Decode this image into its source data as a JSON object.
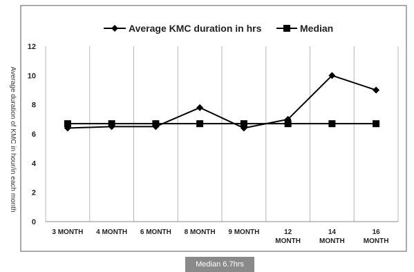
{
  "chart_data": {
    "type": "line",
    "title": "",
    "xlabel": "",
    "ylabel": "Average duration of KMC in hour/in each month",
    "categories": [
      "3 MONTH",
      "4 MONTH",
      "6 MONTH",
      "8 MONTH",
      "9 MONTH",
      "12 MONTH",
      "14 MONTH",
      "16 MONTH"
    ],
    "ylim": [
      0,
      12
    ],
    "yticks": [
      0,
      2,
      4,
      6,
      8,
      10,
      12
    ],
    "grid": "vertical",
    "legend_position": "top",
    "series": [
      {
        "name": "Average KMC duration in hrs",
        "marker": "diamond",
        "color": "#000000",
        "values": [
          6.4,
          6.5,
          6.5,
          7.8,
          6.4,
          7.0,
          10.0,
          9.0
        ]
      },
      {
        "name": "Median",
        "marker": "square",
        "color": "#000000",
        "values": [
          6.7,
          6.7,
          6.7,
          6.7,
          6.7,
          6.7,
          6.7,
          6.7
        ]
      }
    ]
  },
  "caption": "Median 6.7hrs"
}
